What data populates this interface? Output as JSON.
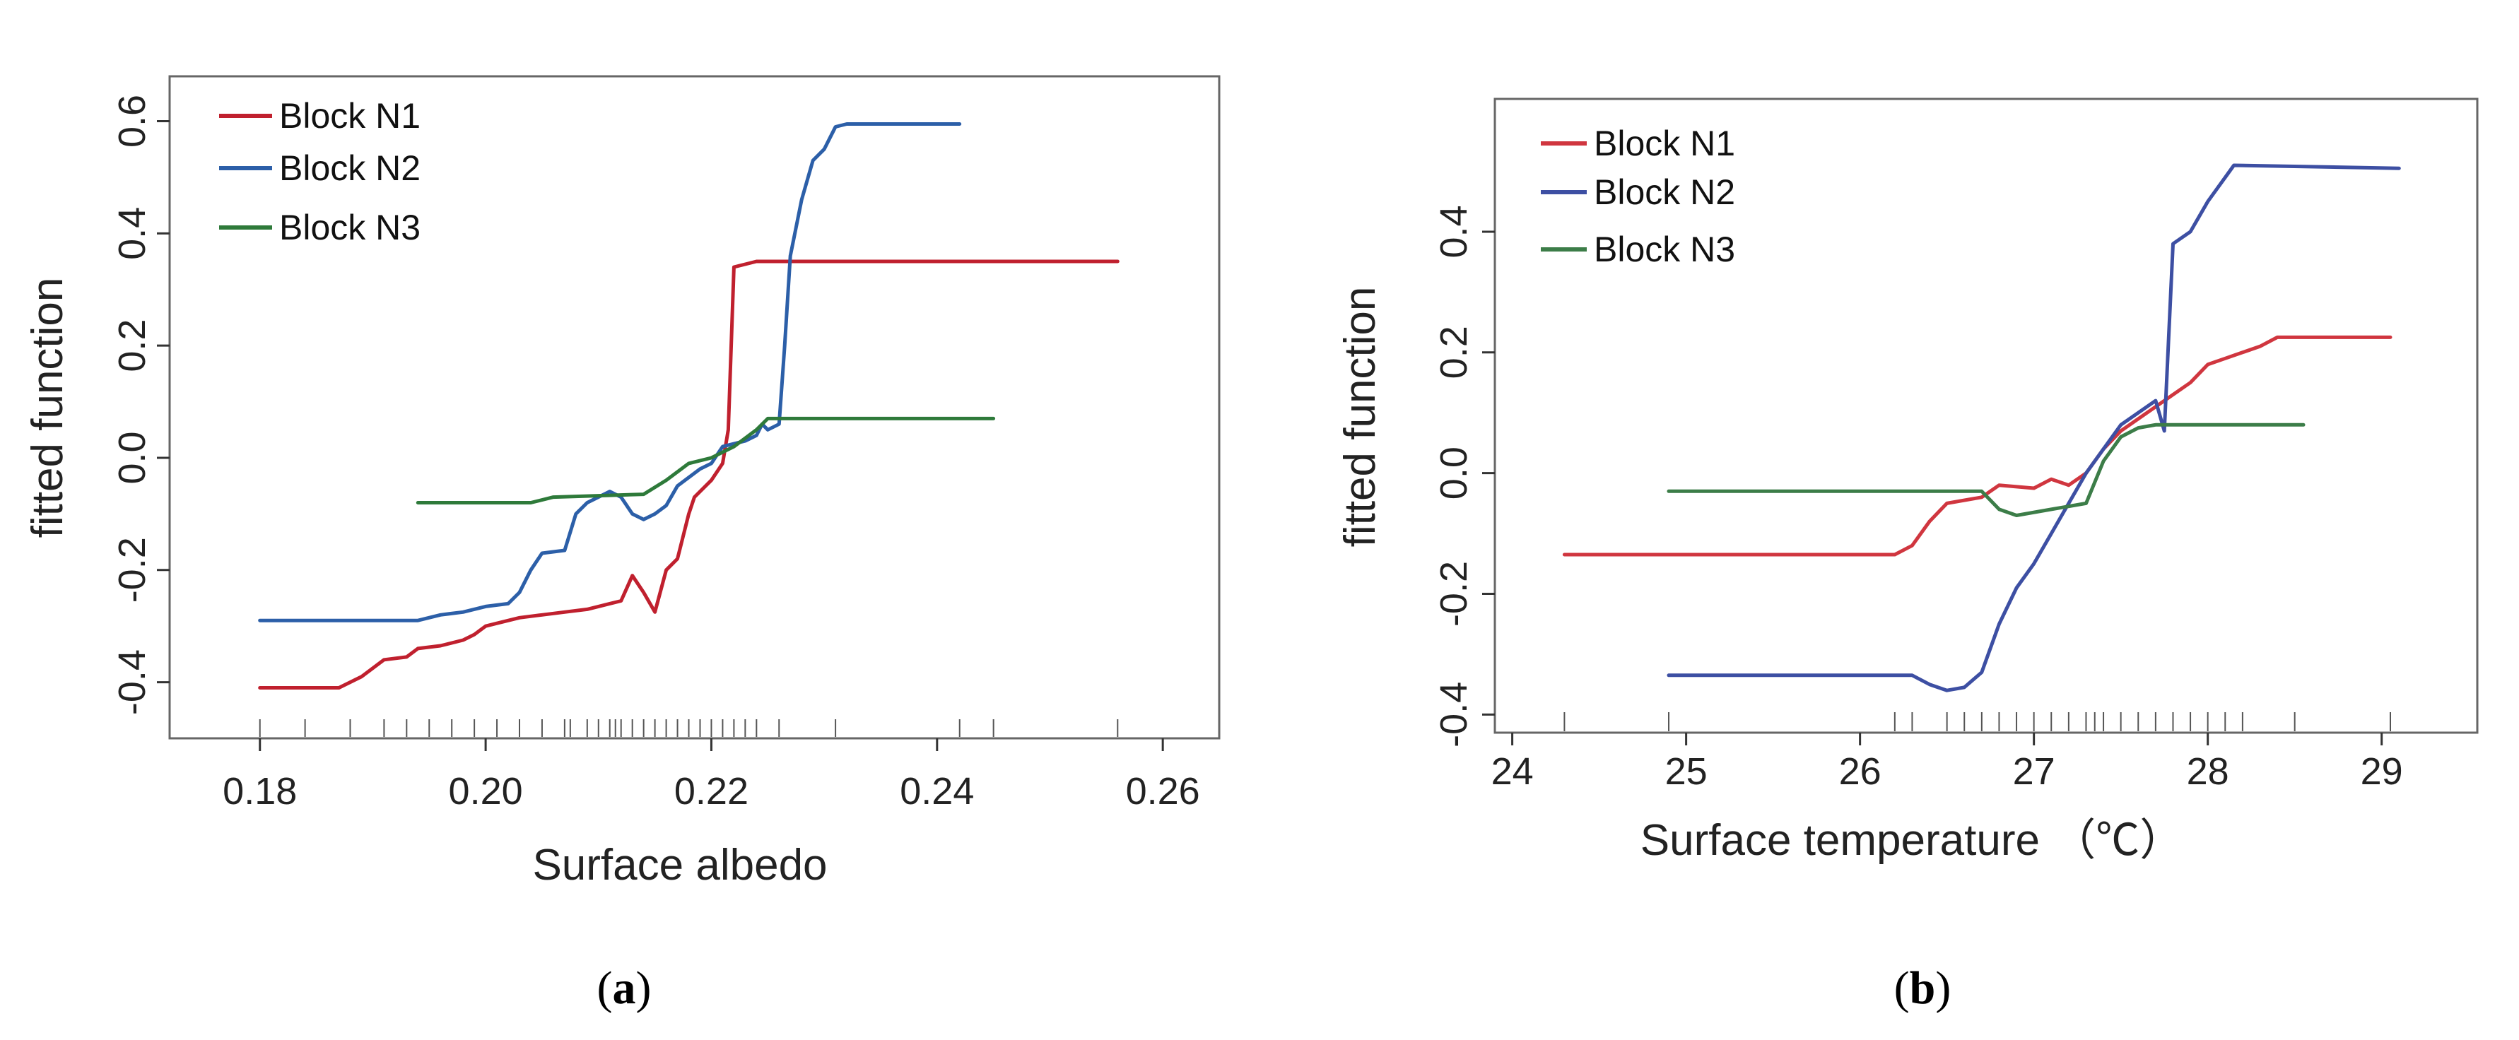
{
  "chart_data": [
    {
      "type": "line",
      "panel_label": "a",
      "xlabel": "Surface albedo",
      "ylabel": "fitted function",
      "xlim": [
        0.172,
        0.265
      ],
      "ylim": [
        -0.5,
        0.68
      ],
      "xticks": [
        "0.18",
        "0.20",
        "0.22",
        "0.24",
        "0.26"
      ],
      "xtick_values": [
        0.18,
        0.2,
        0.22,
        0.24,
        0.26
      ],
      "yticks": [
        "-0.4",
        "-0.2",
        "0.0",
        "0.2",
        "0.4",
        "0.6"
      ],
      "ytick_values": [
        -0.4,
        -0.2,
        0.0,
        0.2,
        0.4,
        0.6
      ],
      "legend_position": "top-left",
      "series": [
        {
          "name": "Block N1",
          "color": "#c0202e",
          "points": [
            [
              0.18,
              -0.41
            ],
            [
              0.187,
              -0.41
            ],
            [
              0.189,
              -0.39
            ],
            [
              0.191,
              -0.36
            ],
            [
              0.193,
              -0.355
            ],
            [
              0.194,
              -0.34
            ],
            [
              0.196,
              -0.335
            ],
            [
              0.198,
              -0.325
            ],
            [
              0.199,
              -0.315
            ],
            [
              0.2,
              -0.3
            ],
            [
              0.201,
              -0.295
            ],
            [
              0.203,
              -0.285
            ],
            [
              0.205,
              -0.28
            ],
            [
              0.207,
              -0.275
            ],
            [
              0.209,
              -0.27
            ],
            [
              0.21,
              -0.265
            ],
            [
              0.211,
              -0.26
            ],
            [
              0.212,
              -0.255
            ],
            [
              0.213,
              -0.21
            ],
            [
              0.214,
              -0.24
            ],
            [
              0.215,
              -0.275
            ],
            [
              0.216,
              -0.2
            ],
            [
              0.217,
              -0.18
            ],
            [
              0.218,
              -0.1
            ],
            [
              0.2185,
              -0.07
            ],
            [
              0.219,
              -0.06
            ],
            [
              0.22,
              -0.04
            ],
            [
              0.221,
              -0.01
            ],
            [
              0.2215,
              0.05
            ],
            [
              0.222,
              0.34
            ],
            [
              0.223,
              0.345
            ],
            [
              0.224,
              0.35
            ],
            [
              0.256,
              0.35
            ]
          ]
        },
        {
          "name": "Block N2",
          "color": "#2c5fa8",
          "points": [
            [
              0.18,
              -0.29
            ],
            [
              0.194,
              -0.29
            ],
            [
              0.196,
              -0.28
            ],
            [
              0.198,
              -0.275
            ],
            [
              0.2,
              -0.265
            ],
            [
              0.202,
              -0.26
            ],
            [
              0.203,
              -0.24
            ],
            [
              0.204,
              -0.2
            ],
            [
              0.205,
              -0.17
            ],
            [
              0.207,
              -0.165
            ],
            [
              0.208,
              -0.1
            ],
            [
              0.209,
              -0.08
            ],
            [
              0.211,
              -0.06
            ],
            [
              0.212,
              -0.07
            ],
            [
              0.213,
              -0.1
            ],
            [
              0.214,
              -0.11
            ],
            [
              0.215,
              -0.1
            ],
            [
              0.216,
              -0.085
            ],
            [
              0.217,
              -0.05
            ],
            [
              0.218,
              -0.035
            ],
            [
              0.219,
              -0.02
            ],
            [
              0.22,
              -0.01
            ],
            [
              0.221,
              0.02
            ],
            [
              0.222,
              0.025
            ],
            [
              0.223,
              0.03
            ],
            [
              0.224,
              0.04
            ],
            [
              0.2245,
              0.06
            ],
            [
              0.225,
              0.05
            ],
            [
              0.226,
              0.06
            ],
            [
              0.2265,
              0.2
            ],
            [
              0.227,
              0.36
            ],
            [
              0.228,
              0.46
            ],
            [
              0.229,
              0.53
            ],
            [
              0.23,
              0.55
            ],
            [
              0.231,
              0.59
            ],
            [
              0.232,
              0.595
            ],
            [
              0.242,
              0.595
            ]
          ]
        },
        {
          "name": "Block N3",
          "color": "#2e7a3a",
          "points": [
            [
              0.194,
              -0.08
            ],
            [
              0.204,
              -0.08
            ],
            [
              0.206,
              -0.07
            ],
            [
              0.214,
              -0.065
            ],
            [
              0.216,
              -0.04
            ],
            [
              0.218,
              -0.01
            ],
            [
              0.22,
              0.0
            ],
            [
              0.222,
              0.02
            ],
            [
              0.224,
              0.05
            ],
            [
              0.225,
              0.07
            ],
            [
              0.245,
              0.07
            ]
          ]
        }
      ],
      "rug": [
        0.18,
        0.184,
        0.188,
        0.191,
        0.193,
        0.195,
        0.197,
        0.199,
        0.201,
        0.203,
        0.205,
        0.207,
        0.2075,
        0.209,
        0.21,
        0.211,
        0.2115,
        0.212,
        0.213,
        0.214,
        0.215,
        0.216,
        0.217,
        0.218,
        0.219,
        0.22,
        0.221,
        0.222,
        0.223,
        0.224,
        0.226,
        0.231,
        0.242,
        0.245,
        0.256
      ]
    },
    {
      "type": "line",
      "panel_label": "b",
      "xlabel": "Surface temperature （℃）",
      "ylabel": "fitted function",
      "xlim": [
        23.9,
        29.55
      ],
      "ylim": [
        -0.43,
        0.62
      ],
      "xticks": [
        "24",
        "25",
        "26",
        "27",
        "28",
        "29"
      ],
      "xtick_values": [
        24,
        25,
        26,
        27,
        28,
        29
      ],
      "yticks": [
        "-0.4",
        "-0.2",
        "0.0",
        "0.2",
        "0.4"
      ],
      "ytick_values": [
        -0.4,
        -0.2,
        0.0,
        0.2,
        0.4
      ],
      "legend_position": "top-left",
      "series": [
        {
          "name": "Block N1",
          "color": "#d0363f",
          "points": [
            [
              24.3,
              -0.135
            ],
            [
              26.2,
              -0.135
            ],
            [
              26.3,
              -0.12
            ],
            [
              26.4,
              -0.08
            ],
            [
              26.5,
              -0.05
            ],
            [
              26.7,
              -0.04
            ],
            [
              26.8,
              -0.02
            ],
            [
              27.0,
              -0.025
            ],
            [
              27.1,
              -0.01
            ],
            [
              27.2,
              -0.02
            ],
            [
              27.3,
              0.0
            ],
            [
              27.4,
              0.04
            ],
            [
              27.5,
              0.07
            ],
            [
              27.6,
              0.09
            ],
            [
              27.7,
              0.11
            ],
            [
              27.8,
              0.13
            ],
            [
              27.9,
              0.15
            ],
            [
              28.0,
              0.18
            ],
            [
              28.1,
              0.19
            ],
            [
              28.2,
              0.2
            ],
            [
              28.3,
              0.21
            ],
            [
              28.4,
              0.225
            ],
            [
              29.05,
              0.225
            ]
          ]
        },
        {
          "name": "Block N2",
          "color": "#3d4fa3",
          "points": [
            [
              24.9,
              -0.335
            ],
            [
              26.3,
              -0.335
            ],
            [
              26.4,
              -0.35
            ],
            [
              26.5,
              -0.36
            ],
            [
              26.6,
              -0.355
            ],
            [
              26.7,
              -0.33
            ],
            [
              26.8,
              -0.25
            ],
            [
              26.9,
              -0.19
            ],
            [
              27.0,
              -0.15
            ],
            [
              27.1,
              -0.1
            ],
            [
              27.2,
              -0.05
            ],
            [
              27.3,
              0.0
            ],
            [
              27.4,
              0.04
            ],
            [
              27.5,
              0.08
            ],
            [
              27.6,
              0.1
            ],
            [
              27.7,
              0.12
            ],
            [
              27.75,
              0.07
            ],
            [
              27.8,
              0.38
            ],
            [
              27.9,
              0.4
            ],
            [
              28.0,
              0.45
            ],
            [
              28.1,
              0.49
            ],
            [
              28.15,
              0.51
            ],
            [
              29.1,
              0.505
            ]
          ]
        },
        {
          "name": "Block N3",
          "color": "#3c7d48",
          "points": [
            [
              24.9,
              -0.03
            ],
            [
              26.7,
              -0.03
            ],
            [
              26.8,
              -0.06
            ],
            [
              26.9,
              -0.07
            ],
            [
              27.1,
              -0.06
            ],
            [
              27.3,
              -0.05
            ],
            [
              27.4,
              0.02
            ],
            [
              27.5,
              0.06
            ],
            [
              27.6,
              0.075
            ],
            [
              27.7,
              0.08
            ],
            [
              28.55,
              0.08
            ]
          ]
        }
      ],
      "rug": [
        24.3,
        24.9,
        26.2,
        26.3,
        26.5,
        26.6,
        26.7,
        26.8,
        26.9,
        27.0,
        27.1,
        27.2,
        27.3,
        27.35,
        27.4,
        27.5,
        27.6,
        27.7,
        27.8,
        27.9,
        28.0,
        28.1,
        28.2,
        28.5,
        29.05
      ]
    }
  ]
}
